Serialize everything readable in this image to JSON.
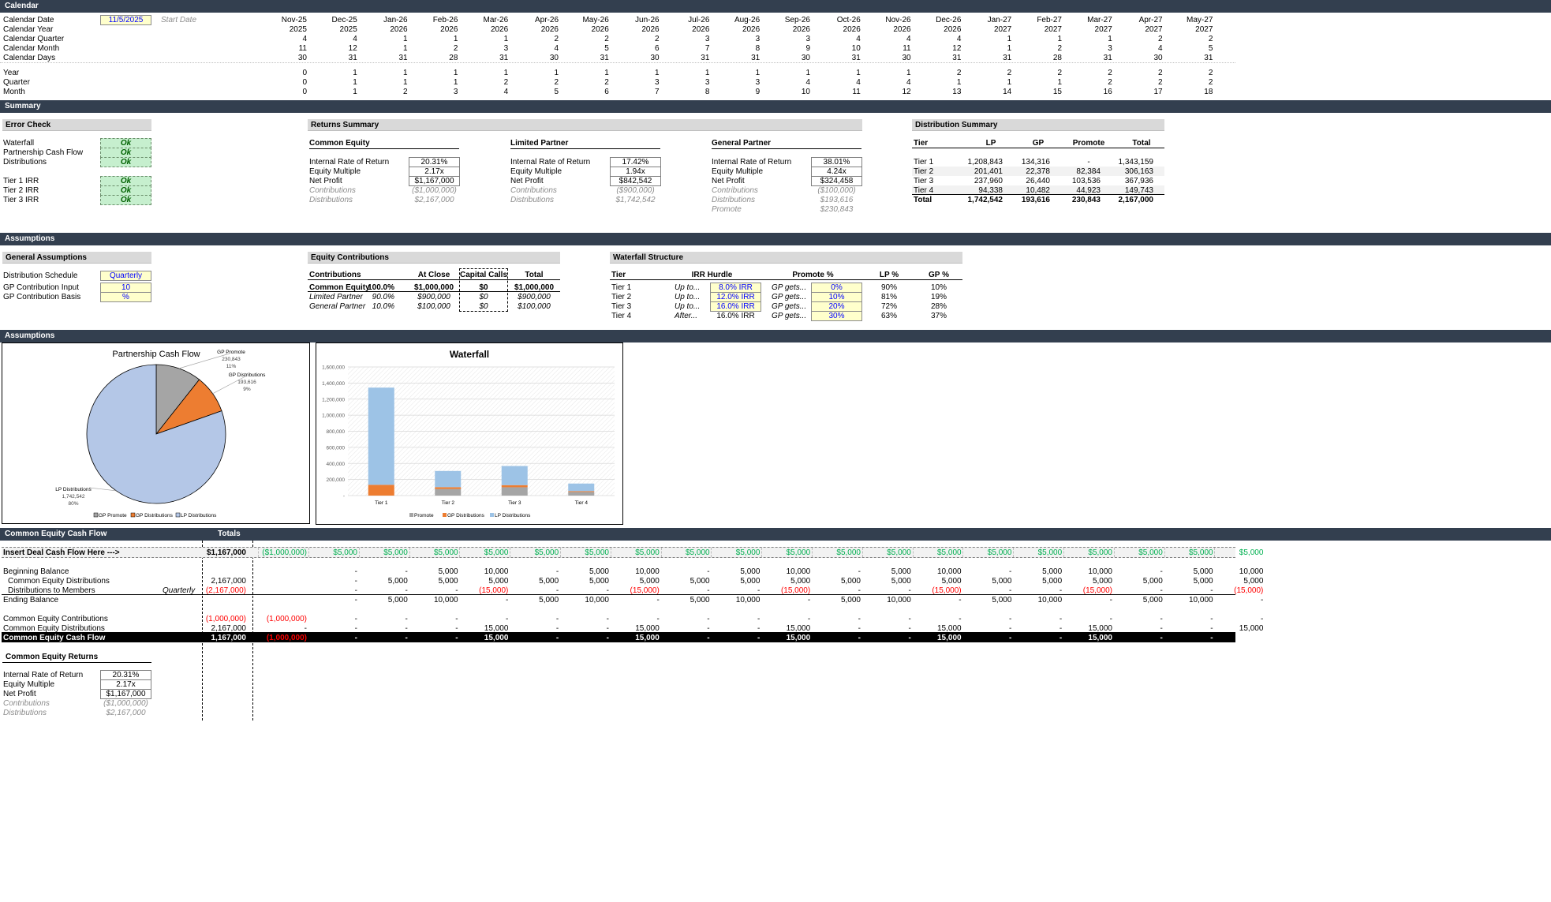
{
  "sections": {
    "calendar": "Calendar",
    "summary": "Summary",
    "assumptions1": "Assumptions",
    "assumptions2": "Assumptions",
    "ce_cash_flow": "Common Equity Cash Flow"
  },
  "calendar": {
    "rows": [
      "Calendar Date",
      "Calendar Year",
      "Calendar Quarter",
      "Calendar Month",
      "Calendar Days"
    ],
    "date_value": "11/5/2025",
    "start_label": "Start Date",
    "months": [
      "Nov-25",
      "Dec-25",
      "Jan-26",
      "Feb-26",
      "Mar-26",
      "Apr-26",
      "May-26",
      "Jun-26",
      "Jul-26",
      "Aug-26",
      "Sep-26",
      "Oct-26",
      "Nov-26",
      "Dec-26",
      "Jan-27",
      "Feb-27",
      "Mar-27",
      "Apr-27",
      "May-27"
    ],
    "years": [
      "2025",
      "2025",
      "2026",
      "2026",
      "2026",
      "2026",
      "2026",
      "2026",
      "2026",
      "2026",
      "2026",
      "2026",
      "2026",
      "2026",
      "2027",
      "2027",
      "2027",
      "2027",
      "2027"
    ],
    "quarters": [
      "4",
      "4",
      "1",
      "1",
      "1",
      "2",
      "2",
      "2",
      "3",
      "3",
      "3",
      "4",
      "4",
      "4",
      "1",
      "1",
      "1",
      "2",
      "2"
    ],
    "cal_months": [
      "11",
      "12",
      "1",
      "2",
      "3",
      "4",
      "5",
      "6",
      "7",
      "8",
      "9",
      "10",
      "11",
      "12",
      "1",
      "2",
      "3",
      "4",
      "5"
    ],
    "days": [
      "30",
      "31",
      "31",
      "28",
      "31",
      "30",
      "31",
      "30",
      "31",
      "31",
      "30",
      "31",
      "30",
      "31",
      "31",
      "28",
      "31",
      "30",
      "31"
    ],
    "rel_rows": [
      "Year",
      "Quarter",
      "Month"
    ],
    "rel_year": [
      "0",
      "1",
      "1",
      "1",
      "1",
      "1",
      "1",
      "1",
      "1",
      "1",
      "1",
      "1",
      "1",
      "2",
      "2",
      "2",
      "2",
      "2",
      "2"
    ],
    "rel_quarter": [
      "0",
      "1",
      "1",
      "1",
      "2",
      "2",
      "2",
      "3",
      "3",
      "3",
      "4",
      "4",
      "4",
      "1",
      "1",
      "1",
      "2",
      "2",
      "2"
    ],
    "rel_month": [
      "0",
      "1",
      "2",
      "3",
      "4",
      "5",
      "6",
      "7",
      "8",
      "9",
      "10",
      "11",
      "12",
      "13",
      "14",
      "15",
      "16",
      "17",
      "18"
    ]
  },
  "error_check": {
    "title": "Error Check",
    "rows": [
      "Waterfall",
      "Partnership Cash Flow",
      "Distributions",
      "Tier 1 IRR",
      "Tier 2 IRR",
      "Tier 3 IRR"
    ],
    "value": "Ok"
  },
  "returns_summary": {
    "title": "Returns Summary",
    "row_labels": [
      "Internal Rate of Return",
      "Equity Multiple",
      "Net Profit",
      "Contributions",
      "Distributions",
      "Promote"
    ],
    "groups": [
      {
        "name": "Common Equity",
        "irr": "20.31%",
        "em": "2.17x",
        "np": "$1,167,000",
        "contrib": "($1,000,000)",
        "dist": "$2,167,000",
        "promote": ""
      },
      {
        "name": "Limited Partner",
        "irr": "17.42%",
        "em": "1.94x",
        "np": "$842,542",
        "contrib": "($900,000)",
        "dist": "$1,742,542",
        "promote": ""
      },
      {
        "name": "General Partner",
        "irr": "38.01%",
        "em": "4.24x",
        "np": "$324,458",
        "contrib": "($100,000)",
        "dist": "$193,616",
        "promote": "$230,843"
      }
    ]
  },
  "distribution_summary": {
    "title": "Distribution Summary",
    "headers": [
      "Tier",
      "LP",
      "GP",
      "Promote",
      "Total"
    ],
    "rows": [
      [
        "Tier 1",
        "1,208,843",
        "134,316",
        "-",
        "1,343,159"
      ],
      [
        "Tier 2",
        "201,401",
        "22,378",
        "82,384",
        "306,163"
      ],
      [
        "Tier 3",
        "237,960",
        "26,440",
        "103,536",
        "367,936"
      ],
      [
        "Tier 4",
        "94,338",
        "10,482",
        "44,923",
        "149,743"
      ],
      [
        "Total",
        "1,742,542",
        "193,616",
        "230,843",
        "2,167,000"
      ]
    ]
  },
  "general_assumptions": {
    "title": "General Assumptions",
    "rows": [
      {
        "label": "Distribution Schedule",
        "value": "Quarterly"
      },
      {
        "label": "GP Contribution Input",
        "value": "10"
      },
      {
        "label": "GP Contribution Basis",
        "value": "%"
      }
    ]
  },
  "equity_contributions": {
    "title": "Equity Contributions",
    "headers": [
      "Contributions",
      "At Close",
      "Capital Calls",
      "Total"
    ],
    "rows": [
      {
        "name": "Common Equity",
        "pct": "100.0%",
        "close": "$1,000,000",
        "calls": "$0",
        "total": "$1,000,000"
      },
      {
        "name": "Limited Partner",
        "pct": "90.0%",
        "close": "$900,000",
        "calls": "$0",
        "total": "$900,000"
      },
      {
        "name": "General Partner",
        "pct": "10.0%",
        "close": "$100,000",
        "calls": "$0",
        "total": "$100,000"
      }
    ]
  },
  "waterfall_structure": {
    "title": "Waterfall Structure",
    "headers": [
      "Tier",
      "IRR Hurdle",
      "Promote %",
      "LP %",
      "GP %"
    ],
    "rows": [
      {
        "tier": "Tier 1",
        "pre": "Up to...",
        "hurdle": "8.0% IRR",
        "gp": "GP gets...",
        "promote": "0%",
        "lp_pct": "90%",
        "gp_pct": "10%"
      },
      {
        "tier": "Tier 2",
        "pre": "Up to...",
        "hurdle": "12.0% IRR",
        "gp": "GP gets...",
        "promote": "10%",
        "lp_pct": "81%",
        "gp_pct": "19%"
      },
      {
        "tier": "Tier 3",
        "pre": "Up to...",
        "hurdle": "16.0% IRR",
        "gp": "GP gets...",
        "promote": "20%",
        "lp_pct": "72%",
        "gp_pct": "28%"
      },
      {
        "tier": "Tier 4",
        "pre": "After...",
        "hurdle": "16.0% IRR",
        "gp": "GP gets...",
        "promote": "30%",
        "lp_pct": "63%",
        "gp_pct": "37%"
      }
    ]
  },
  "chart_data": [
    {
      "type": "pie",
      "title": "Partnership Cash Flow",
      "categories": [
        "GP Promote",
        "GP Distributions",
        "LP Distributions"
      ],
      "values": [
        230843,
        193616,
        1742542
      ],
      "value_labels": [
        "230,843",
        "193,616",
        "1,742,542"
      ],
      "percent_labels": [
        "11%",
        "9%",
        "80%"
      ],
      "colors": [
        "#a5a5a5",
        "#ed7d31",
        "#b4c7e7"
      ],
      "legend": [
        "GP Promote",
        "GP Distributions",
        "LP Distributions"
      ],
      "legend_position": "bottom"
    },
    {
      "type": "bar",
      "stacked": true,
      "title": "Waterfall",
      "categories": [
        "Tier 1",
        "Tier 2",
        "Tier 3",
        "Tier 4"
      ],
      "series": [
        {
          "name": "Promote",
          "values": [
            0,
            82384,
            103536,
            44923
          ],
          "color": "#a5a5a5"
        },
        {
          "name": "GP Distributions",
          "values": [
            134316,
            22378,
            26440,
            10482
          ],
          "color": "#ed7d31"
        },
        {
          "name": "LP Distributions",
          "values": [
            1208843,
            201401,
            237960,
            94338
          ],
          "color": "#9dc3e6"
        }
      ],
      "ylim": [
        0,
        1600000
      ],
      "yticks": [
        "-",
        "200,000",
        "400,000",
        "600,000",
        "800,000",
        "1,000,000",
        "1,200,000",
        "1,400,000",
        "1,600,000"
      ],
      "grid": true,
      "legend_position": "bottom"
    }
  ],
  "cash_flow": {
    "totals_header": "Totals",
    "deal_label": "Insert Deal Cash Flow Here --->",
    "deal_total": "$1,167,000",
    "deal_values": [
      "($1,000,000)",
      "$5,000",
      "$5,000",
      "$5,000",
      "$5,000",
      "$5,000",
      "$5,000",
      "$5,000",
      "$5,000",
      "$5,000",
      "$5,000",
      "$5,000",
      "$5,000",
      "$5,000",
      "$5,000",
      "$5,000",
      "$5,000",
      "$5,000",
      "$5,000",
      "$5,000"
    ],
    "rows": [
      {
        "label": "Beginning Balance",
        "sub": "",
        "total": "",
        "indent": false,
        "values": [
          "",
          "-",
          "-",
          "5,000",
          "10,000",
          "-",
          "5,000",
          "10,000",
          "-",
          "5,000",
          "10,000",
          "-",
          "5,000",
          "10,000",
          "-",
          "5,000",
          "10,000",
          "-",
          "5,000",
          "10,000"
        ]
      },
      {
        "label": "Common Equity Distributions",
        "sub": "",
        "total": "2,167,000",
        "indent": true,
        "values": [
          "",
          "-",
          "5,000",
          "5,000",
          "5,000",
          "5,000",
          "5,000",
          "5,000",
          "5,000",
          "5,000",
          "5,000",
          "5,000",
          "5,000",
          "5,000",
          "5,000",
          "5,000",
          "5,000",
          "5,000",
          "5,000",
          "5,000"
        ]
      },
      {
        "label": "Distributions to Members",
        "sub": "Quarterly",
        "total": "(2,167,000)",
        "indent": true,
        "values": [
          "",
          "-",
          "-",
          "-",
          "(15,000)",
          "-",
          "-",
          "(15,000)",
          "-",
          "-",
          "(15,000)",
          "-",
          "-",
          "(15,000)",
          "-",
          "-",
          "(15,000)",
          "-",
          "-",
          "(15,000)"
        ]
      },
      {
        "label": "Ending Balance",
        "sub": "",
        "total": "",
        "indent": false,
        "values": [
          "",
          "-",
          "5,000",
          "10,000",
          "-",
          "5,000",
          "10,000",
          "-",
          "5,000",
          "10,000",
          "-",
          "5,000",
          "10,000",
          "-",
          "5,000",
          "10,000",
          "-",
          "5,000",
          "10,000",
          "-"
        ]
      }
    ],
    "rows2": [
      {
        "label": "Common Equity Contributions",
        "total": "(1,000,000)",
        "values": [
          "(1,000,000)",
          "-",
          "-",
          "-",
          "-",
          "-",
          "-",
          "-",
          "-",
          "-",
          "-",
          "-",
          "-",
          "-",
          "-",
          "-",
          "-",
          "-",
          "-",
          "-"
        ]
      },
      {
        "label": "Common Equity Distributions",
        "total": "2,167,000",
        "values": [
          "-",
          "-",
          "-",
          "-",
          "15,000",
          "-",
          "-",
          "15,000",
          "-",
          "-",
          "15,000",
          "-",
          "-",
          "15,000",
          "-",
          "-",
          "15,000",
          "-",
          "-",
          "15,000"
        ]
      }
    ],
    "cf_row": {
      "label": "Common Equity Cash Flow",
      "total": "1,167,000",
      "values": [
        "(1,000,000)",
        "-",
        "-",
        "-",
        "15,000",
        "-",
        "-",
        "15,000",
        "-",
        "-",
        "15,000",
        "-",
        "-",
        "15,000",
        "-",
        "-",
        "15,000",
        "-",
        "-",
        "15,000"
      ]
    }
  },
  "ce_returns": {
    "title": "Common Equity Returns",
    "rows": [
      {
        "label": "Internal Rate of Return",
        "value": "20.31%"
      },
      {
        "label": "Equity Multiple",
        "value": "2.17x"
      },
      {
        "label": "Net Profit",
        "value": "$1,167,000"
      },
      {
        "label": "Contributions",
        "value": "($1,000,000)"
      },
      {
        "label": "Distributions",
        "value": "$2,167,000"
      }
    ]
  }
}
